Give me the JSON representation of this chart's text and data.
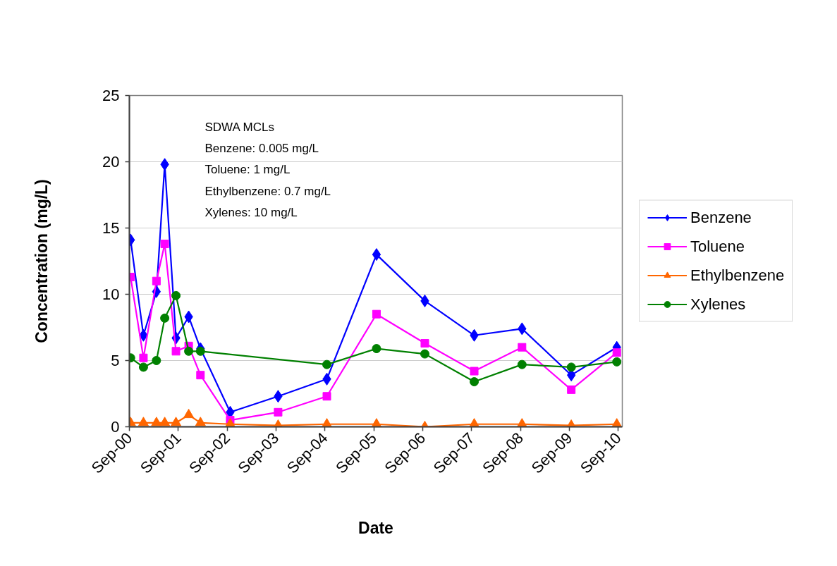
{
  "chart_data": {
    "type": "line",
    "xlabel": "Date",
    "ylabel": "Concentration (mg/L)",
    "x": [
      "2000-09-10",
      "2000-12-15",
      "2001-03-22",
      "2001-05-23",
      "2001-08-15",
      "2001-11-18",
      "2002-02-14",
      "2002-09-24",
      "2003-09-17",
      "2004-09-15",
      "2005-09-21",
      "2006-09-17",
      "2007-09-21",
      "2008-09-12",
      "2009-09-15",
      "2010-08-21"
    ],
    "series": [
      {
        "name": "Benzene",
        "color": "#0000ff",
        "marker": "diamond",
        "values": [
          14.1,
          6.9,
          10.2,
          19.8,
          6.7,
          8.3,
          5.9,
          1.1,
          2.3,
          3.6,
          13.0,
          9.5,
          6.9,
          7.4,
          3.9,
          6.0
        ]
      },
      {
        "name": "Toluene",
        "color": "#ff00ff",
        "marker": "square",
        "values": [
          11.3,
          5.2,
          11.0,
          13.8,
          5.7,
          6.1,
          3.9,
          0.5,
          1.1,
          2.3,
          8.5,
          6.3,
          4.2,
          6.0,
          2.8,
          5.6
        ]
      },
      {
        "name": "Ethylbenzene",
        "color": "#ff6600",
        "marker": "triangle",
        "values": [
          0.3,
          0.3,
          0.3,
          0.3,
          0.3,
          0.9,
          0.3,
          0.2,
          0.1,
          0.2,
          0.2,
          0.0,
          0.2,
          0.2,
          0.1,
          0.2
        ]
      },
      {
        "name": "Xylenes",
        "color": "#008000",
        "marker": "circle",
        "x": [
          "2000-09-10",
          "2000-12-15",
          "2001-03-22",
          "2001-05-23",
          "2001-08-15",
          "2001-11-18",
          "2002-02-14",
          "2004-09-15",
          "2005-09-21",
          "2006-09-17",
          "2007-09-21",
          "2008-09-12",
          "2009-09-15",
          "2010-08-21"
        ],
        "values": [
          5.2,
          4.5,
          5.0,
          8.2,
          9.9,
          5.7,
          5.7,
          4.7,
          5.9,
          5.5,
          3.4,
          4.7,
          4.5,
          4.9
        ]
      }
    ],
    "xlim": [
      "2000-09-01",
      "2010-10-01"
    ],
    "xticks": [
      {
        "value": "2000-09-01",
        "label": "Sep-00"
      },
      {
        "value": "2001-09-01",
        "label": "Sep-01"
      },
      {
        "value": "2002-09-01",
        "label": "Sep-02"
      },
      {
        "value": "2003-09-01",
        "label": "Sep-03"
      },
      {
        "value": "2004-09-01",
        "label": "Sep-04"
      },
      {
        "value": "2005-09-01",
        "label": "Sep-05"
      },
      {
        "value": "2006-09-01",
        "label": "Sep-06"
      },
      {
        "value": "2007-09-01",
        "label": "Sep-07"
      },
      {
        "value": "2008-09-01",
        "label": "Sep-08"
      },
      {
        "value": "2009-09-01",
        "label": "Sep-09"
      },
      {
        "value": "2010-09-01",
        "label": "Sep-10"
      }
    ],
    "ylim": [
      0,
      25
    ],
    "yticks": [
      0,
      5,
      10,
      15,
      20,
      25
    ],
    "grid": "y",
    "legend": "right",
    "line_style": "solid",
    "annotations": [
      "SDWA MCLs",
      "Benzene: 0.005 mg/L",
      "Toluene: 1 mg/L",
      "Ethylbenzene: 0.7 mg/L",
      "Xylenes: 10 mg/L"
    ]
  }
}
